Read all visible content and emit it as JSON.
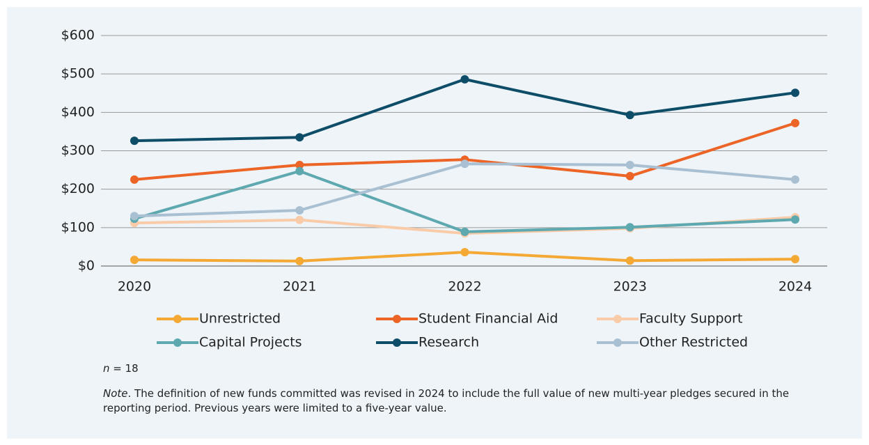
{
  "chart_data": {
    "type": "line",
    "categories": [
      "2020",
      "2021",
      "2022",
      "2023",
      "2024"
    ],
    "series": [
      {
        "name": "Unrestricted",
        "color": "#f4a935",
        "values": [
          16,
          13,
          36,
          14,
          18
        ]
      },
      {
        "name": "Student Financial Aid",
        "color": "#ec6527",
        "values": [
          225,
          263,
          277,
          234,
          372
        ]
      },
      {
        "name": "Faculty Support",
        "color": "#f9cba8",
        "values": [
          112,
          120,
          85,
          98,
          127
        ]
      },
      {
        "name": "Capital Projects",
        "color": "#5ea8b0",
        "values": [
          123,
          247,
          89,
          101,
          121
        ]
      },
      {
        "name": "Research",
        "color": "#0e4d68",
        "values": [
          326,
          335,
          486,
          393,
          451
        ]
      },
      {
        "name": "Other Restricted",
        "color": "#a9c0d3",
        "values": [
          130,
          145,
          266,
          263,
          225
        ]
      }
    ],
    "ylim": [
      0,
      600
    ],
    "yticks": [
      {
        "value": 0,
        "label": "$0"
      },
      {
        "value": 100,
        "label": "$100"
      },
      {
        "value": 200,
        "label": "$200"
      },
      {
        "value": 300,
        "label": "$300"
      },
      {
        "value": 400,
        "label": "$400"
      },
      {
        "value": 500,
        "label": "$500"
      },
      {
        "value": 600,
        "label": "$600"
      }
    ],
    "grid": true,
    "legend": "bottom"
  },
  "footnote": {
    "n_label": "n",
    "n_text": " = 18"
  },
  "note": {
    "label": "Note",
    "text": ". The definition of new funds committed was revised in 2024 to include the full value of new multi-year pledges secured in the reporting period. Previous years were limited to a five-year value."
  }
}
